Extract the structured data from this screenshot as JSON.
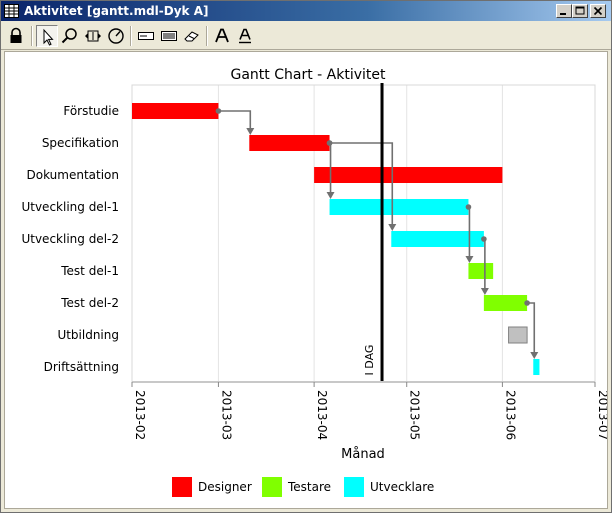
{
  "window": {
    "title": "Aktivitet [gantt.mdl-Dyk A]"
  },
  "toolbar": {
    "buttons": [
      {
        "name": "lock-icon",
        "active": false
      },
      {
        "name": "pointer-icon",
        "active": true
      },
      {
        "name": "zoom-icon",
        "active": false
      },
      {
        "name": "scroll-icon",
        "active": false
      },
      {
        "name": "gauge-icon",
        "active": false
      },
      {
        "name": "field-icon",
        "active": false
      },
      {
        "name": "list-icon",
        "active": false
      },
      {
        "name": "eraser-icon",
        "active": false
      },
      {
        "name": "font-icon",
        "active": false
      },
      {
        "name": "font-underline-icon",
        "active": false
      }
    ]
  },
  "chart_data": {
    "type": "gantt",
    "title": "Gantt Chart - Aktivitet",
    "xlabel": "Månad",
    "ylabel": "",
    "x_ticks": [
      "2013-02",
      "2013-03",
      "2013-04",
      "2013-05",
      "2013-06",
      "2013-07"
    ],
    "xlim": [
      "2013-02-01",
      "2013-07-01"
    ],
    "grid": true,
    "legend_position": "bottom",
    "today": {
      "date": "2013-04-23",
      "label": "I DAG"
    },
    "categories": [
      "Förstudie",
      "Specifikation",
      "Dokumentation",
      "Utveckling del-1",
      "Utveckling del-2",
      "Test del-1",
      "Test del-2",
      "Utbildning",
      "Driftsättning"
    ],
    "tasks": [
      {
        "name": "Förstudie",
        "start": "2013-02-01",
        "end": "2013-03-01",
        "group": "Designer"
      },
      {
        "name": "Specifikation",
        "start": "2013-03-11",
        "end": "2013-04-06",
        "group": "Designer"
      },
      {
        "name": "Dokumentation",
        "start": "2013-04-01",
        "end": "2013-06-01",
        "group": "Designer"
      },
      {
        "name": "Utveckling del-1",
        "start": "2013-04-06",
        "end": "2013-05-21",
        "group": "Utvecklare"
      },
      {
        "name": "Utveckling del-2",
        "start": "2013-04-26",
        "end": "2013-05-26",
        "group": "Utvecklare"
      },
      {
        "name": "Test del-1",
        "start": "2013-05-21",
        "end": "2013-05-29",
        "group": "Testare"
      },
      {
        "name": "Test del-2",
        "start": "2013-05-26",
        "end": "2013-06-09",
        "group": "Testare"
      },
      {
        "name": "Utbildning",
        "start": "2013-06-03",
        "end": "2013-06-09",
        "group": null
      },
      {
        "name": "Driftsättning",
        "start": "2013-06-11",
        "end": "2013-06-13",
        "group": "Utvecklare"
      }
    ],
    "dependencies": [
      {
        "from": "Förstudie",
        "to": "Specifikation"
      },
      {
        "from": "Specifikation",
        "to": "Utveckling del-1"
      },
      {
        "from": "Specifikation",
        "to": "Utveckling del-2"
      },
      {
        "from": "Utveckling del-1",
        "to": "Test del-1"
      },
      {
        "from": "Utveckling del-2",
        "to": "Test del-2"
      },
      {
        "from": "Test del-2",
        "to": "Driftsättning"
      }
    ],
    "legend": [
      {
        "name": "Designer",
        "color": "#ff0000"
      },
      {
        "name": "Testare",
        "color": "#80ff00"
      },
      {
        "name": "Utvecklare",
        "color": "#00ffff"
      }
    ],
    "colors": {
      "unassigned": "#c0c0c0",
      "dependency": "#707070",
      "today_line": "#000000"
    }
  }
}
